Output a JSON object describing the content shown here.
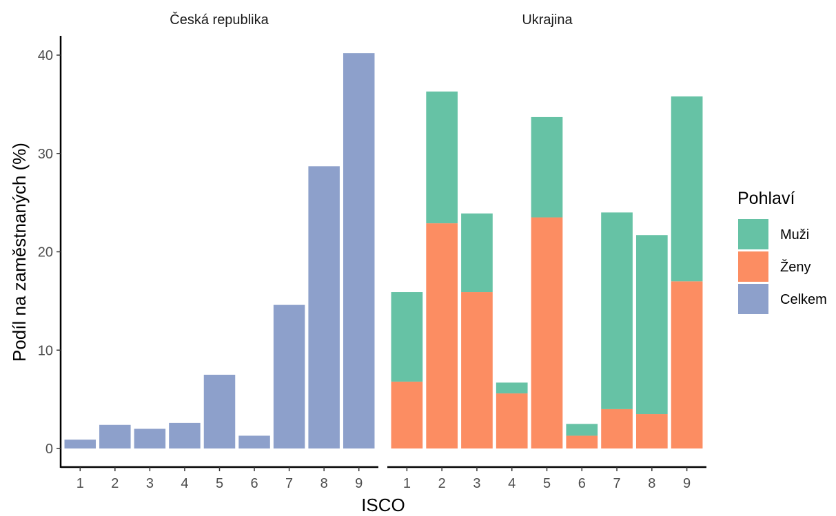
{
  "chart_data": {
    "type": "bar",
    "stacked": true,
    "xlabel": "ISCO",
    "ylabel": "Podíl na zaměstnaných (%)",
    "ylim": [
      0,
      40
    ],
    "yticks": [
      0,
      10,
      20,
      30,
      40
    ],
    "categories": [
      "1",
      "2",
      "3",
      "4",
      "5",
      "6",
      "7",
      "8",
      "9"
    ],
    "grid": false,
    "legend": {
      "title": "Pohlaví",
      "placement": "right",
      "entries": [
        {
          "name": "Muži",
          "color": "#66c2a5"
        },
        {
          "name": "Ženy",
          "color": "#fc8d62"
        },
        {
          "name": "Celkem",
          "color": "#8da0cb"
        }
      ]
    },
    "panels": [
      {
        "title": "Česká republika",
        "series": [
          {
            "name": "Celkem",
            "color": "#8da0cb",
            "values": [
              0.9,
              2.4,
              2.0,
              2.6,
              7.5,
              1.3,
              14.6,
              28.7,
              40.2
            ]
          }
        ]
      },
      {
        "title": "Ukrajina",
        "series": [
          {
            "name": "Ženy",
            "color": "#fc8d62",
            "values": [
              6.8,
              22.9,
              15.9,
              5.6,
              23.5,
              1.3,
              4.0,
              3.5,
              17.0
            ]
          },
          {
            "name": "Muži",
            "color": "#66c2a5",
            "values": [
              9.1,
              13.4,
              8.0,
              1.1,
              10.2,
              1.2,
              20.0,
              18.2,
              18.8
            ]
          }
        ]
      }
    ]
  }
}
